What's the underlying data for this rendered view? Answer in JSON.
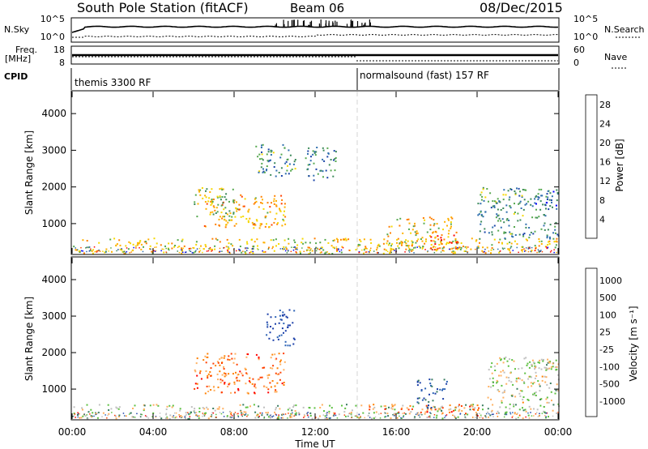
{
  "header": {
    "title": "South Pole Station (fitACF)",
    "beam": "Beam 06",
    "date": "08/Dec/2015"
  },
  "noise_panel": {
    "left_label": "N.Sky",
    "right_label": "N.Search",
    "left_ticks": [
      "10^5",
      "10^0"
    ],
    "right_ticks": [
      "10^5",
      "10^0"
    ]
  },
  "freq_panel": {
    "left_label_line1": "Freq.",
    "left_label_line2": "[MHz]",
    "right_label": "Nave",
    "left_ticks": [
      "18",
      "8"
    ],
    "right_ticks": [
      "60",
      "0"
    ]
  },
  "cpid_panel": {
    "label": "CPID",
    "segments": [
      {
        "text": "themis 3300 RF",
        "start_hour": 0
      },
      {
        "text": "normalsound (fast) 157 RF",
        "start_hour": 14
      }
    ]
  },
  "x_axis": {
    "label": "Time UT",
    "ticks": [
      "00:00",
      "04:00",
      "08:00",
      "12:00",
      "16:00",
      "20:00",
      "00:00"
    ],
    "range_hours": [
      0,
      24
    ]
  },
  "y_axis": {
    "label": "Slant Range [km]",
    "ticks": [
      "1000",
      "2000",
      "3000",
      "4000"
    ],
    "range_km": [
      180,
      4600
    ]
  },
  "colors": {
    "power": [
      "#0000ff",
      "#1a43a8",
      "#2f6fae",
      "#3c8a5a",
      "#55a84e",
      "#f5d800",
      "#ffb000",
      "#ff8000",
      "#ff4000",
      "#ff0000"
    ],
    "velocity": [
      "#1a3ea8",
      "#2b62b5",
      "#3a7d60",
      "#5cc040",
      "#c0c0c0",
      "#ffb060",
      "#ff8000",
      "#ff4000",
      "#ff0000"
    ]
  },
  "chart_data": [
    {
      "type": "heatmap",
      "name": "power",
      "colorbar_label": "Power [dB]",
      "colorbar_ticks": [
        "4",
        "8",
        "12",
        "16",
        "20",
        "24",
        "28"
      ],
      "value_range": [
        0,
        30
      ],
      "xlabel": "",
      "ylabel": "Slant Range [km]",
      "x_unit": "hours UT",
      "regions": [
        {
          "x": [
            0.0,
            24.0
          ],
          "y": [
            200,
            620
          ],
          "level": 0.6
        },
        {
          "x": [
            6.5,
            10.5
          ],
          "y": [
            900,
            1800
          ],
          "level": 0.65
        },
        {
          "x": [
            6.0,
            8.0
          ],
          "y": [
            1200,
            2000
          ],
          "level": 0.5
        },
        {
          "x": [
            9.0,
            11.0
          ],
          "y": [
            2300,
            3200
          ],
          "level": 0.35
        },
        {
          "x": [
            11.5,
            13.0
          ],
          "y": [
            2200,
            3100
          ],
          "level": 0.3
        },
        {
          "x": [
            15.5,
            19.0
          ],
          "y": [
            300,
            1200
          ],
          "level": 0.6
        },
        {
          "x": [
            17.5,
            19.0
          ],
          "y": [
            300,
            700
          ],
          "level": 0.95
        },
        {
          "x": [
            20.0,
            24.0
          ],
          "y": [
            600,
            2000
          ],
          "level": 0.35
        },
        {
          "x": [
            22.5,
            24.0
          ],
          "y": [
            1500,
            1900
          ],
          "level": 0.2
        }
      ]
    },
    {
      "type": "heatmap",
      "name": "velocity",
      "colorbar_label": "Velocity [m s⁻¹]",
      "colorbar_ticks": [
        "1000",
        "500",
        "100",
        "25",
        "-25",
        "-100",
        "-500",
        "-1000"
      ],
      "value_range": [
        -1000,
        1000
      ],
      "xlabel": "Time UT",
      "ylabel": "Slant Range [km]",
      "x_unit": "hours UT",
      "regions": [
        {
          "x": [
            0.0,
            24.0
          ],
          "y": [
            200,
            600
          ],
          "level": 0.45
        },
        {
          "x": [
            6.0,
            10.5
          ],
          "y": [
            900,
            2000
          ],
          "level": 0.75
        },
        {
          "x": [
            9.5,
            11.0
          ],
          "y": [
            2200,
            3200
          ],
          "level": 0.05
        },
        {
          "x": [
            14.5,
            20.5
          ],
          "y": [
            350,
            600
          ],
          "level": 0.75
        },
        {
          "x": [
            17.0,
            18.5
          ],
          "y": [
            500,
            1300
          ],
          "level": 0.15
        },
        {
          "x": [
            20.5,
            24.0
          ],
          "y": [
            600,
            1900
          ],
          "level": 0.5
        },
        {
          "x": [
            22.0,
            24.0
          ],
          "y": [
            1500,
            1900
          ],
          "level": 0.45
        }
      ]
    }
  ]
}
